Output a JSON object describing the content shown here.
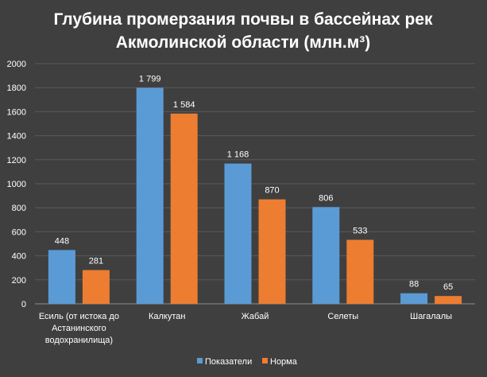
{
  "chart_data": {
    "type": "bar",
    "title_lines": [
      "Глубина промерзания почвы в бассейнах рек",
      "Акмолинской области (млн.м³)"
    ],
    "categories": [
      [
        "Есиль (от истока до",
        "Астанинского",
        "водохранилища)"
      ],
      [
        "Калкутан"
      ],
      [
        "Жабай"
      ],
      [
        "Селеты"
      ],
      [
        "Шагалалы"
      ]
    ],
    "series": [
      {
        "name": "Показатели",
        "color": "#5b9bd5",
        "values": [
          448,
          1799,
          1168,
          806,
          88
        ],
        "labels": [
          "448",
          "1 799",
          "1 168",
          "806",
          "88"
        ]
      },
      {
        "name": "Норма",
        "color": "#ed7d31",
        "values": [
          281,
          1584,
          870,
          533,
          65
        ],
        "labels": [
          "281",
          "1 584",
          "870",
          "533",
          "65"
        ]
      }
    ],
    "y_ticks": [
      "0",
      "200",
      "400",
      "600",
      "800",
      "1000",
      "1200",
      "1400",
      "1600",
      "1800",
      "2000"
    ],
    "ylim": [
      0,
      2000
    ],
    "grid": true,
    "legend_position": "bottom"
  }
}
